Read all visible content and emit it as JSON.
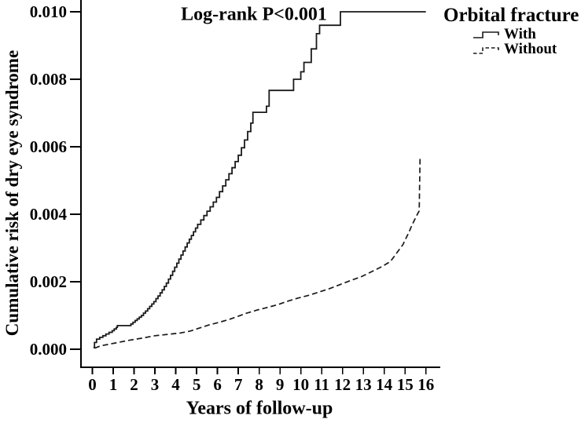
{
  "chart_data": {
    "type": "line",
    "annotation": "Log-rank P<0.001",
    "xlabel": "Years of follow-up",
    "ylabel": "Cumulative risk of dry eye syndrome",
    "xlim": [
      0,
      16
    ],
    "ylim": [
      0.0,
      0.01
    ],
    "x_ticks": [
      "0",
      "1",
      "2",
      "3",
      "4",
      "5",
      "6",
      "7",
      "8",
      "9",
      "10",
      "11",
      "12",
      "13",
      "14",
      "15",
      "16"
    ],
    "y_ticks": [
      "0.000",
      "0.002",
      "0.004",
      "0.006",
      "0.008",
      "0.010"
    ],
    "grid": false,
    "legend_title": "Orbital fracture",
    "legend_position": "top-right",
    "line_color": "#1a1a1a",
    "series": [
      {
        "name": "With",
        "style": "solid",
        "step": true,
        "points": [
          [
            0.05,
            5e-05
          ],
          [
            0.1,
            0.0002
          ],
          [
            0.2,
            0.0003
          ],
          [
            0.35,
            0.00035
          ],
          [
            0.5,
            0.0004
          ],
          [
            0.65,
            0.00045
          ],
          [
            0.8,
            0.0005
          ],
          [
            0.95,
            0.00055
          ],
          [
            1.05,
            0.0006
          ],
          [
            1.15,
            0.00065
          ],
          [
            1.2,
            0.0007
          ],
          [
            1.85,
            0.00075
          ],
          [
            1.95,
            0.0008
          ],
          [
            2.05,
            0.00085
          ],
          [
            2.15,
            0.0009
          ],
          [
            2.25,
            0.00095
          ],
          [
            2.35,
            0.001
          ],
          [
            2.45,
            0.00107
          ],
          [
            2.55,
            0.00113
          ],
          [
            2.65,
            0.0012
          ],
          [
            2.75,
            0.00127
          ],
          [
            2.85,
            0.00134
          ],
          [
            2.95,
            0.00141
          ],
          [
            3.05,
            0.0015
          ],
          [
            3.15,
            0.00158
          ],
          [
            3.25,
            0.00167
          ],
          [
            3.35,
            0.00176
          ],
          [
            3.45,
            0.00186
          ],
          [
            3.55,
            0.00196
          ],
          [
            3.65,
            0.00208
          ],
          [
            3.75,
            0.00219
          ],
          [
            3.85,
            0.00231
          ],
          [
            3.95,
            0.00243
          ],
          [
            4.05,
            0.00255
          ],
          [
            4.15,
            0.00267
          ],
          [
            4.25,
            0.00279
          ],
          [
            4.35,
            0.00291
          ],
          [
            4.45,
            0.00303
          ],
          [
            4.55,
            0.00315
          ],
          [
            4.65,
            0.00326
          ],
          [
            4.75,
            0.00337
          ],
          [
            4.85,
            0.00348
          ],
          [
            4.95,
            0.00359
          ],
          [
            5.05,
            0.0037
          ],
          [
            5.2,
            0.00383
          ],
          [
            5.35,
            0.00396
          ],
          [
            5.5,
            0.00409
          ],
          [
            5.65,
            0.00422
          ],
          [
            5.8,
            0.00436
          ],
          [
            5.95,
            0.0045
          ],
          [
            6.1,
            0.00467
          ],
          [
            6.25,
            0.00484
          ],
          [
            6.4,
            0.00502
          ],
          [
            6.55,
            0.0052
          ],
          [
            6.7,
            0.00538
          ],
          [
            6.85,
            0.00556
          ],
          [
            7.0,
            0.00575
          ],
          [
            7.15,
            0.00597
          ],
          [
            7.3,
            0.0062
          ],
          [
            7.45,
            0.00645
          ],
          [
            7.6,
            0.0067
          ],
          [
            7.7,
            0.00702
          ],
          [
            8.35,
            0.0072
          ],
          [
            8.48,
            0.00767
          ],
          [
            9.65,
            0.008
          ],
          [
            10.0,
            0.00822
          ],
          [
            10.15,
            0.0085
          ],
          [
            10.5,
            0.0089
          ],
          [
            10.75,
            0.00935
          ],
          [
            10.9,
            0.0096
          ],
          [
            11.9,
            0.01
          ],
          [
            16.0,
            0.01
          ]
        ]
      },
      {
        "name": "Without",
        "style": "dashed",
        "step": false,
        "points": [
          [
            0.1,
            3e-05
          ],
          [
            0.4,
            0.0001
          ],
          [
            0.9,
            0.00016
          ],
          [
            1.3,
            0.00021
          ],
          [
            1.8,
            0.00027
          ],
          [
            2.4,
            0.00033
          ],
          [
            3.0,
            0.0004
          ],
          [
            3.6,
            0.00044
          ],
          [
            4.2,
            0.00048
          ],
          [
            4.7,
            0.00054
          ],
          [
            5.1,
            0.00062
          ],
          [
            5.6,
            0.00072
          ],
          [
            6.1,
            0.0008
          ],
          [
            6.6,
            0.00089
          ],
          [
            7.0,
            0.00098
          ],
          [
            7.4,
            0.00107
          ],
          [
            7.9,
            0.00116
          ],
          [
            8.4,
            0.00124
          ],
          [
            8.9,
            0.00132
          ],
          [
            9.4,
            0.00143
          ],
          [
            9.9,
            0.00152
          ],
          [
            10.4,
            0.0016
          ],
          [
            10.9,
            0.0017
          ],
          [
            11.4,
            0.0018
          ],
          [
            11.9,
            0.00192
          ],
          [
            12.4,
            0.00204
          ],
          [
            12.9,
            0.00215
          ],
          [
            13.4,
            0.0023
          ],
          [
            13.9,
            0.00245
          ],
          [
            14.3,
            0.0026
          ],
          [
            14.6,
            0.00285
          ],
          [
            14.9,
            0.0031
          ],
          [
            15.15,
            0.00342
          ],
          [
            15.35,
            0.0037
          ],
          [
            15.55,
            0.00395
          ],
          [
            15.68,
            0.0041
          ],
          [
            15.72,
            0.0057
          ]
        ]
      }
    ]
  }
}
